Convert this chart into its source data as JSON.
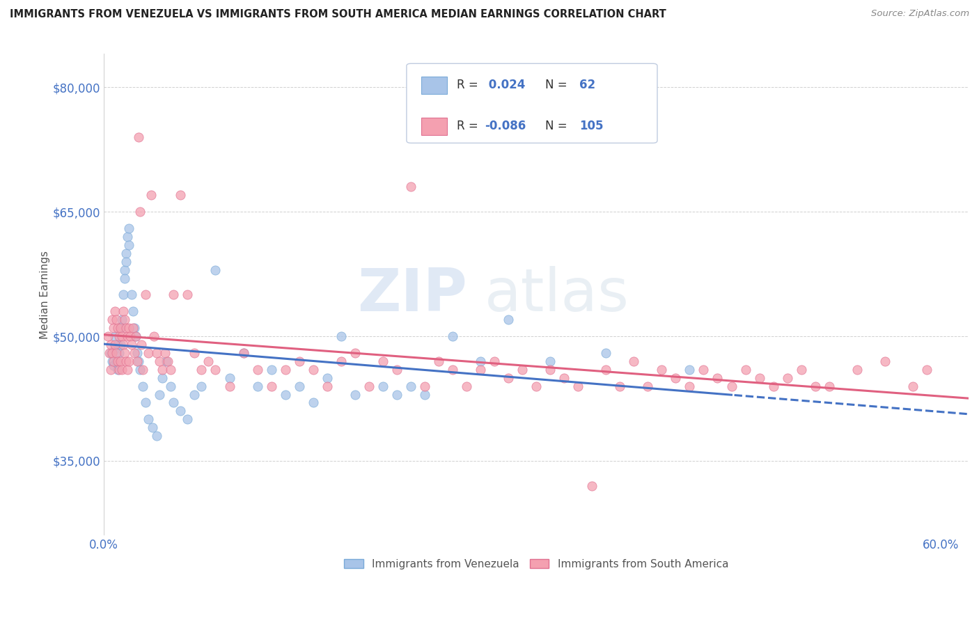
{
  "title": "IMMIGRANTS FROM VENEZUELA VS IMMIGRANTS FROM SOUTH AMERICA MEDIAN EARNINGS CORRELATION CHART",
  "source": "Source: ZipAtlas.com",
  "ylabel": "Median Earnings",
  "watermark_zip": "ZIP",
  "watermark_atlas": "atlas",
  "background_color": "#ffffff",
  "grid_color": "#d0d0d0",
  "xlim": [
    0.0,
    0.62
  ],
  "ylim": [
    26000,
    84000
  ],
  "yticks": [
    35000,
    50000,
    65000,
    80000
  ],
  "ytick_labels": [
    "$35,000",
    "$50,000",
    "$65,000",
    "$80,000"
  ],
  "xtick_labels": [
    "0.0%",
    "60.0%"
  ],
  "xtick_positions": [
    0.0,
    0.6
  ],
  "series": [
    {
      "name": "Immigrants from Venezuela",
      "color": "#a8c4e8",
      "edge_color": "#7aaad8",
      "R": 0.024,
      "N": 62,
      "trend_color": "#4472c4",
      "trend_dashed_start": 0.45,
      "x": [
        0.005,
        0.006,
        0.007,
        0.008,
        0.008,
        0.009,
        0.01,
        0.01,
        0.011,
        0.012,
        0.012,
        0.013,
        0.014,
        0.015,
        0.015,
        0.016,
        0.016,
        0.017,
        0.018,
        0.018,
        0.02,
        0.021,
        0.022,
        0.023,
        0.024,
        0.025,
        0.026,
        0.028,
        0.03,
        0.032,
        0.035,
        0.038,
        0.04,
        0.042,
        0.045,
        0.048,
        0.05,
        0.055,
        0.06,
        0.065,
        0.07,
        0.08,
        0.09,
        0.1,
        0.11,
        0.12,
        0.13,
        0.14,
        0.15,
        0.16,
        0.17,
        0.18,
        0.2,
        0.21,
        0.22,
        0.23,
        0.25,
        0.27,
        0.29,
        0.32,
        0.36,
        0.42
      ],
      "y": [
        48000,
        47000,
        46500,
        50000,
        48500,
        47000,
        49000,
        46000,
        48000,
        51000,
        49000,
        52000,
        55000,
        58000,
        57000,
        60000,
        59000,
        62000,
        63000,
        61000,
        55000,
        53000,
        51000,
        50000,
        48000,
        47000,
        46000,
        44000,
        42000,
        40000,
        39000,
        38000,
        43000,
        45000,
        47000,
        44000,
        42000,
        41000,
        40000,
        43000,
        44000,
        58000,
        45000,
        48000,
        44000,
        46000,
        43000,
        44000,
        42000,
        45000,
        50000,
        43000,
        44000,
        43000,
        44000,
        43000,
        50000,
        47000,
        52000,
        47000,
        48000,
        46000
      ]
    },
    {
      "name": "Immigrants from South America",
      "color": "#f4a0b0",
      "edge_color": "#e07090",
      "R": -0.086,
      "N": 105,
      "trend_color": "#e06080",
      "x": [
        0.003,
        0.004,
        0.005,
        0.005,
        0.006,
        0.006,
        0.007,
        0.007,
        0.008,
        0.008,
        0.009,
        0.009,
        0.01,
        0.01,
        0.011,
        0.011,
        0.012,
        0.012,
        0.013,
        0.013,
        0.014,
        0.014,
        0.015,
        0.015,
        0.016,
        0.016,
        0.017,
        0.017,
        0.018,
        0.018,
        0.019,
        0.02,
        0.021,
        0.022,
        0.023,
        0.024,
        0.025,
        0.026,
        0.027,
        0.028,
        0.03,
        0.032,
        0.034,
        0.036,
        0.038,
        0.04,
        0.042,
        0.044,
        0.046,
        0.048,
        0.05,
        0.055,
        0.06,
        0.065,
        0.07,
        0.075,
        0.08,
        0.09,
        0.1,
        0.11,
        0.12,
        0.13,
        0.14,
        0.15,
        0.16,
        0.17,
        0.18,
        0.19,
        0.2,
        0.21,
        0.22,
        0.23,
        0.24,
        0.25,
        0.26,
        0.27,
        0.28,
        0.29,
        0.3,
        0.31,
        0.32,
        0.33,
        0.34,
        0.35,
        0.36,
        0.37,
        0.38,
        0.39,
        0.4,
        0.41,
        0.42,
        0.43,
        0.44,
        0.45,
        0.46,
        0.47,
        0.48,
        0.49,
        0.5,
        0.51,
        0.52,
        0.54,
        0.56,
        0.58,
        0.59
      ],
      "y": [
        50000,
        48000,
        49000,
        46000,
        52000,
        48000,
        51000,
        47000,
        53000,
        49000,
        52000,
        48000,
        51000,
        47000,
        50000,
        46000,
        51000,
        47000,
        50000,
        46000,
        53000,
        49000,
        52000,
        48000,
        51000,
        47000,
        50000,
        46000,
        51000,
        47000,
        50000,
        49000,
        51000,
        48000,
        50000,
        47000,
        74000,
        65000,
        49000,
        46000,
        55000,
        48000,
        67000,
        50000,
        48000,
        47000,
        46000,
        48000,
        47000,
        46000,
        55000,
        67000,
        55000,
        48000,
        46000,
        47000,
        46000,
        44000,
        48000,
        46000,
        44000,
        46000,
        47000,
        46000,
        44000,
        47000,
        48000,
        44000,
        47000,
        46000,
        68000,
        44000,
        47000,
        46000,
        44000,
        46000,
        47000,
        45000,
        46000,
        44000,
        46000,
        45000,
        44000,
        32000,
        46000,
        44000,
        47000,
        44000,
        46000,
        45000,
        44000,
        46000,
        45000,
        44000,
        46000,
        45000,
        44000,
        45000,
        46000,
        44000,
        44000,
        46000,
        47000,
        44000,
        46000
      ]
    }
  ],
  "legend_box_color": "#f0f4ff",
  "legend_box_edge": "#b0c8e8",
  "axis_tick_color": "#4472c4",
  "ylabel_color": "#555555"
}
